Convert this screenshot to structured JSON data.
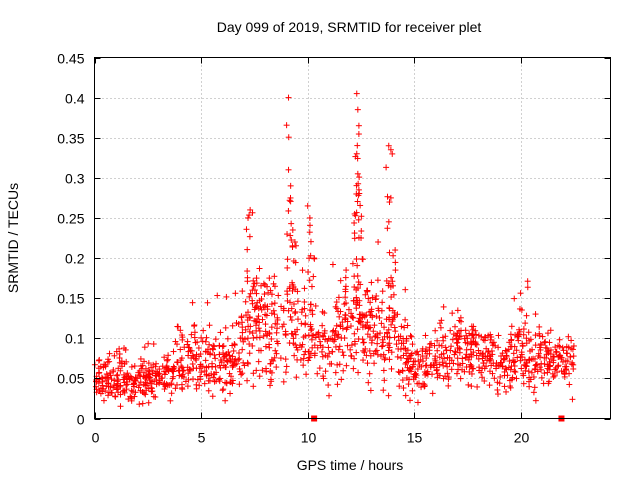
{
  "chart_data": {
    "type": "scatter",
    "title": "Day 099 of 2019, SRMTID for receiver plet",
    "xlabel": "GPS time / hours",
    "ylabel": "SRMTID / TECUs",
    "xlim": [
      0,
      24.2
    ],
    "ylim": [
      0,
      0.45
    ],
    "xticks": [
      0,
      5,
      10,
      15,
      20
    ],
    "xtick_labels": [
      "0",
      "5",
      "10",
      "15",
      "20"
    ],
    "yticks": [
      0,
      0.05,
      0.1,
      0.15,
      0.2,
      0.25,
      0.3,
      0.35,
      0.4,
      0.45
    ],
    "ytick_labels": [
      "0",
      "0.05",
      "0.1",
      "0.15",
      "0.2",
      "0.25",
      "0.3",
      "0.35",
      "0.4",
      "0.45"
    ],
    "grid": true,
    "marker": "+",
    "color": "#ff0000",
    "series": [
      {
        "name": "SRMTID",
        "envelope": [
          [
            0.0,
            0.05
          ],
          [
            1.0,
            0.048
          ],
          [
            2.0,
            0.045
          ],
          [
            3.0,
            0.048
          ],
          [
            4.0,
            0.065
          ],
          [
            4.6,
            0.085
          ],
          [
            5.5,
            0.07
          ],
          [
            6.5,
            0.075
          ],
          [
            7.5,
            0.12
          ],
          [
            8.5,
            0.1
          ],
          [
            9.3,
            0.12
          ],
          [
            10.0,
            0.1
          ],
          [
            11.0,
            0.09
          ],
          [
            12.0,
            0.12
          ],
          [
            13.0,
            0.11
          ],
          [
            14.0,
            0.1
          ],
          [
            15.0,
            0.06
          ],
          [
            16.0,
            0.075
          ],
          [
            17.0,
            0.085
          ],
          [
            18.0,
            0.08
          ],
          [
            19.0,
            0.065
          ],
          [
            20.0,
            0.085
          ],
          [
            21.0,
            0.07
          ],
          [
            22.0,
            0.065
          ],
          [
            22.5,
            0.075
          ]
        ],
        "spikes": [
          [
            7.2,
            0.25
          ],
          [
            7.3,
            0.26
          ],
          [
            7.6,
            0.175
          ],
          [
            8.2,
            0.175
          ],
          [
            9.1,
            0.4
          ],
          [
            9.1,
            0.31
          ],
          [
            9.2,
            0.29
          ],
          [
            9.3,
            0.235
          ],
          [
            9.4,
            0.22
          ],
          [
            10.0,
            0.265
          ],
          [
            10.1,
            0.25
          ],
          [
            10.3,
            0.2
          ],
          [
            11.8,
            0.185
          ],
          [
            12.2,
            0.255
          ],
          [
            12.3,
            0.405
          ],
          [
            12.35,
            0.385
          ],
          [
            12.4,
            0.365
          ],
          [
            12.3,
            0.33
          ],
          [
            12.35,
            0.305
          ],
          [
            12.4,
            0.285
          ],
          [
            12.5,
            0.225
          ],
          [
            13.3,
            0.22
          ],
          [
            13.8,
            0.34
          ],
          [
            13.9,
            0.335
          ],
          [
            13.9,
            0.275
          ],
          [
            14.1,
            0.21
          ]
        ],
        "baseline_points": [
          [
            10.3,
            0.0
          ],
          [
            21.9,
            0.0
          ]
        ]
      }
    ]
  }
}
